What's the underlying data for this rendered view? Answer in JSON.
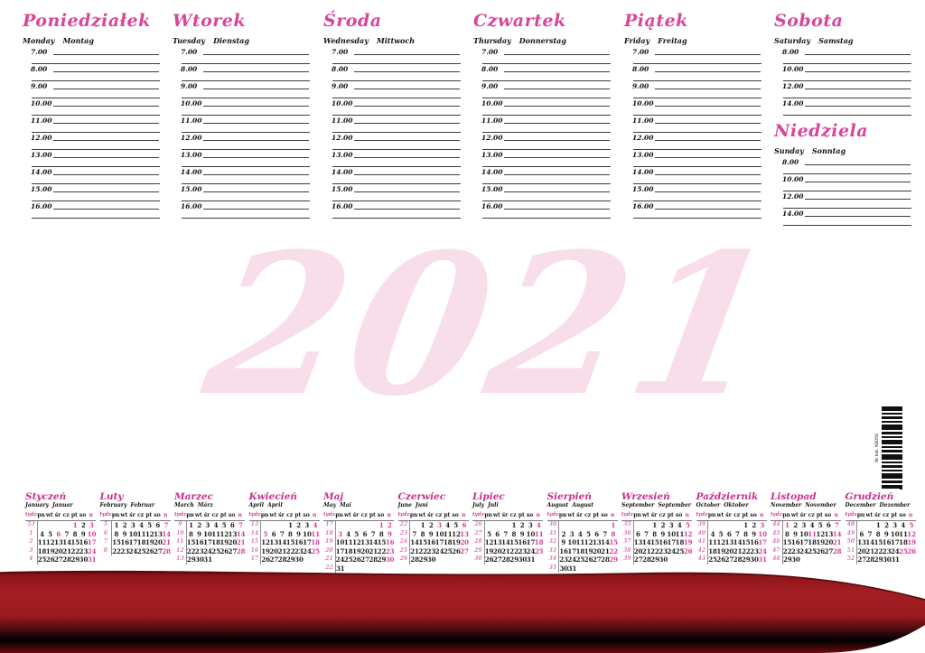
{
  "year_watermark": "2021",
  "colors": {
    "title_pink": "#d8469c",
    "month_magenta": "#c6308d",
    "holiday_pink": "#d63d96",
    "band_red": "#9a1a20",
    "watermark_pink": "#f7d9e8"
  },
  "pink_flag_suffix": "*",
  "planner": {
    "days": [
      {
        "title": "Poniedziałek",
        "sub_en": "Monday",
        "sub_de": "Montag",
        "times": [
          "7.00",
          "8.00",
          "9.00",
          "10.00",
          "11.00",
          "12.00",
          "13.00",
          "14.00",
          "15.00",
          "16.00"
        ]
      },
      {
        "title": "Wtorek",
        "sub_en": "Tuesday",
        "sub_de": "Dienstag",
        "times": [
          "7.00",
          "8.00",
          "9.00",
          "10.00",
          "11.00",
          "12.00",
          "13.00",
          "14.00",
          "15.00",
          "16.00"
        ]
      },
      {
        "title": "Środa",
        "sub_en": "Wednesday",
        "sub_de": "Mittwoch",
        "times": [
          "7.00",
          "8.00",
          "9.00",
          "10.00",
          "11.00",
          "12.00",
          "13.00",
          "14.00",
          "15.00",
          "16.00"
        ]
      },
      {
        "title": "Czwartek",
        "sub_en": "Thursday",
        "sub_de": "Donnerstag",
        "times": [
          "7.00",
          "8.00",
          "9.00",
          "10.00",
          "11.00",
          "12.00",
          "13.00",
          "14.00",
          "15.00",
          "16.00"
        ]
      },
      {
        "title": "Piątek",
        "sub_en": "Friday",
        "sub_de": "Freitag",
        "times": [
          "7.00",
          "8.00",
          "9.00",
          "10.00",
          "11.00",
          "12.00",
          "13.00",
          "14.00",
          "15.00",
          "16.00"
        ]
      },
      {
        "title": "Sobota",
        "sub_en": "Saturday",
        "sub_de": "Samstag",
        "times": [
          "8.00",
          "10.00",
          "12.00",
          "14.00"
        ]
      },
      {
        "title": "Niedziela",
        "sub_en": "Sunday",
        "sub_de": "Sonntag",
        "times": [
          "8.00",
          "10.00",
          "12.00",
          "14.00"
        ]
      }
    ]
  },
  "barcode": {
    "label": "Nr kat. KB056"
  },
  "mini_calendars": {
    "day_headers": [
      "tydz.*",
      "pn",
      "wt",
      "śr",
      "cz",
      "pt",
      "so",
      "n*"
    ],
    "months": [
      {
        "title": "Styczeń",
        "sub_en": "January",
        "sub_de": "Januar",
        "weeks": [
          {
            "n": "53",
            "d": [
              "",
              "",
              "",
              "",
              "1*",
              "2",
              "3*"
            ]
          },
          {
            "n": "1",
            "d": [
              "4",
              "5",
              "6*",
              "7",
              "8",
              "9",
              "10*"
            ]
          },
          {
            "n": "2",
            "d": [
              "11",
              "12",
              "13",
              "14",
              "15",
              "16",
              "17*"
            ]
          },
          {
            "n": "3",
            "d": [
              "18",
              "19",
              "20",
              "21",
              "22",
              "23",
              "24*"
            ]
          },
          {
            "n": "4",
            "d": [
              "25",
              "26",
              "27",
              "28",
              "29",
              "30",
              "31*"
            ]
          }
        ]
      },
      {
        "title": "Luty",
        "sub_en": "February",
        "sub_de": "Februar",
        "weeks": [
          {
            "n": "5",
            "d": [
              "1",
              "2",
              "3",
              "4",
              "5",
              "6",
              "7*"
            ]
          },
          {
            "n": "6",
            "d": [
              "8",
              "9",
              "10",
              "11",
              "12",
              "13",
              "14*"
            ]
          },
          {
            "n": "7",
            "d": [
              "15",
              "16",
              "17",
              "18",
              "19",
              "20",
              "21*"
            ]
          },
          {
            "n": "8",
            "d": [
              "22",
              "23",
              "24",
              "25",
              "26",
              "27",
              "28*"
            ]
          }
        ]
      },
      {
        "title": "Marzec",
        "sub_en": "March",
        "sub_de": "März",
        "weeks": [
          {
            "n": "9",
            "d": [
              "1",
              "2",
              "3",
              "4",
              "5",
              "6",
              "7*"
            ]
          },
          {
            "n": "10",
            "d": [
              "8",
              "9",
              "10",
              "11",
              "12",
              "13",
              "14*"
            ]
          },
          {
            "n": "11",
            "d": [
              "15",
              "16",
              "17",
              "18",
              "19",
              "20",
              "21*"
            ]
          },
          {
            "n": "12",
            "d": [
              "22",
              "23",
              "24",
              "25",
              "26",
              "27",
              "28*"
            ]
          },
          {
            "n": "13",
            "d": [
              "29",
              "30",
              "31",
              "",
              "",
              "",
              ""
            ]
          }
        ]
      },
      {
        "title": "Kwiecień",
        "sub_en": "April",
        "sub_de": "April",
        "weeks": [
          {
            "n": "13",
            "d": [
              "",
              "",
              "",
              "1",
              "2",
              "3",
              "4*"
            ]
          },
          {
            "n": "14",
            "d": [
              "5*",
              "6",
              "7",
              "8",
              "9",
              "10",
              "11*"
            ]
          },
          {
            "n": "15",
            "d": [
              "12",
              "13",
              "14",
              "15",
              "16",
              "17",
              "18*"
            ]
          },
          {
            "n": "16",
            "d": [
              "19",
              "20",
              "21",
              "22",
              "23",
              "24",
              "25*"
            ]
          },
          {
            "n": "17",
            "d": [
              "26",
              "27",
              "28",
              "29",
              "30",
              "",
              ""
            ]
          }
        ]
      },
      {
        "title": "Maj",
        "sub_en": "May",
        "sub_de": "Mai",
        "weeks": [
          {
            "n": "17",
            "d": [
              "",
              "",
              "",
              "",
              "",
              "1*",
              "2*"
            ]
          },
          {
            "n": "18",
            "d": [
              "3*",
              "4",
              "5",
              "6",
              "7",
              "8",
              "9*"
            ]
          },
          {
            "n": "19",
            "d": [
              "10",
              "11",
              "12",
              "13",
              "14",
              "15",
              "16*"
            ]
          },
          {
            "n": "20",
            "d": [
              "17",
              "18",
              "19",
              "20",
              "21",
              "22",
              "23*"
            ]
          },
          {
            "n": "21",
            "d": [
              "24",
              "25",
              "26",
              "27",
              "28",
              "29",
              "30*"
            ]
          },
          {
            "n": "22",
            "d": [
              "31",
              "",
              "",
              "",
              "",
              "",
              ""
            ]
          }
        ]
      },
      {
        "title": "Czerwiec",
        "sub_en": "June",
        "sub_de": "Juni",
        "weeks": [
          {
            "n": "22",
            "d": [
              "",
              "1",
              "2",
              "3*",
              "4",
              "5",
              "6*"
            ]
          },
          {
            "n": "23",
            "d": [
              "7",
              "8",
              "9",
              "10",
              "11",
              "12",
              "13*"
            ]
          },
          {
            "n": "24",
            "d": [
              "14",
              "15",
              "16",
              "17",
              "18",
              "19",
              "20*"
            ]
          },
          {
            "n": "25",
            "d": [
              "21",
              "22",
              "23",
              "24",
              "25",
              "26",
              "27*"
            ]
          },
          {
            "n": "26",
            "d": [
              "28",
              "29",
              "30",
              "",
              "",
              "",
              ""
            ]
          }
        ]
      },
      {
        "title": "Lipiec",
        "sub_en": "July",
        "sub_de": "Juli",
        "weeks": [
          {
            "n": "26",
            "d": [
              "",
              "",
              "",
              "1",
              "2",
              "3",
              "4*"
            ]
          },
          {
            "n": "27",
            "d": [
              "5",
              "6",
              "7",
              "8",
              "9",
              "10",
              "11*"
            ]
          },
          {
            "n": "28",
            "d": [
              "12",
              "13",
              "14",
              "15",
              "16",
              "17",
              "18*"
            ]
          },
          {
            "n": "29",
            "d": [
              "19",
              "20",
              "21",
              "22",
              "23",
              "24",
              "25*"
            ]
          },
          {
            "n": "30",
            "d": [
              "26",
              "27",
              "28",
              "29",
              "30",
              "31",
              ""
            ]
          }
        ]
      },
      {
        "title": "Sierpień",
        "sub_en": "August",
        "sub_de": "August",
        "weeks": [
          {
            "n": "30",
            "d": [
              "",
              "",
              "",
              "",
              "",
              "",
              "1*"
            ]
          },
          {
            "n": "31",
            "d": [
              "2",
              "3",
              "4",
              "5",
              "6",
              "7",
              "8*"
            ]
          },
          {
            "n": "32",
            "d": [
              "9",
              "10",
              "11",
              "12",
              "13",
              "14",
              "15*"
            ]
          },
          {
            "n": "33",
            "d": [
              "16",
              "17",
              "18",
              "19",
              "20",
              "21",
              "22*"
            ]
          },
          {
            "n": "34",
            "d": [
              "23",
              "24",
              "25",
              "26",
              "27",
              "28",
              "29*"
            ]
          },
          {
            "n": "35",
            "d": [
              "30",
              "31",
              "",
              "",
              "",
              "",
              ""
            ]
          }
        ]
      },
      {
        "title": "Wrzesień",
        "sub_en": "September",
        "sub_de": "September",
        "weeks": [
          {
            "n": "35",
            "d": [
              "",
              "",
              "1",
              "2",
              "3",
              "4",
              "5*"
            ]
          },
          {
            "n": "36",
            "d": [
              "6",
              "7",
              "8",
              "9",
              "10",
              "11",
              "12*"
            ]
          },
          {
            "n": "37",
            "d": [
              "13",
              "14",
              "15",
              "16",
              "17",
              "18",
              "19*"
            ]
          },
          {
            "n": "38",
            "d": [
              "20",
              "21",
              "22",
              "23",
              "24",
              "25",
              "26*"
            ]
          },
          {
            "n": "39",
            "d": [
              "27",
              "28",
              "29",
              "30",
              "",
              "",
              ""
            ]
          }
        ]
      },
      {
        "title": "Październik",
        "sub_en": "October",
        "sub_de": "Oktober",
        "weeks": [
          {
            "n": "39",
            "d": [
              "",
              "",
              "",
              "",
              "1",
              "2",
              "3*"
            ]
          },
          {
            "n": "40",
            "d": [
              "4",
              "5",
              "6",
              "7",
              "8",
              "9",
              "10*"
            ]
          },
          {
            "n": "41",
            "d": [
              "11",
              "12",
              "13",
              "14",
              "15",
              "16",
              "17*"
            ]
          },
          {
            "n": "42",
            "d": [
              "18",
              "19",
              "20",
              "21",
              "22",
              "23",
              "24*"
            ]
          },
          {
            "n": "43",
            "d": [
              "25",
              "26",
              "27",
              "28",
              "29",
              "30",
              "31*"
            ]
          }
        ]
      },
      {
        "title": "Listopad",
        "sub_en": "November",
        "sub_de": "November",
        "weeks": [
          {
            "n": "44",
            "d": [
              "1*",
              "2",
              "3",
              "4",
              "5",
              "6",
              "7*"
            ]
          },
          {
            "n": "45",
            "d": [
              "8",
              "9",
              "10",
              "11*",
              "12",
              "13",
              "14*"
            ]
          },
          {
            "n": "46",
            "d": [
              "15",
              "16",
              "17",
              "18",
              "19",
              "20",
              "21*"
            ]
          },
          {
            "n": "47",
            "d": [
              "22",
              "23",
              "24",
              "25",
              "26",
              "27",
              "28*"
            ]
          },
          {
            "n": "48",
            "d": [
              "29",
              "30",
              "",
              "",
              "",
              "",
              ""
            ]
          }
        ]
      },
      {
        "title": "Grudzień",
        "sub_en": "December",
        "sub_de": "Dezember",
        "weeks": [
          {
            "n": "48",
            "d": [
              "",
              "",
              "1",
              "2",
              "3",
              "4",
              "5*"
            ]
          },
          {
            "n": "49",
            "d": [
              "6",
              "7",
              "8",
              "9",
              "10",
              "11",
              "12*"
            ]
          },
          {
            "n": "50",
            "d": [
              "13",
              "14",
              "15",
              "16",
              "17",
              "18",
              "19*"
            ]
          },
          {
            "n": "51",
            "d": [
              "20",
              "21",
              "22",
              "23",
              "24",
              "25*",
              "26*"
            ]
          },
          {
            "n": "52",
            "d": [
              "27",
              "28",
              "29",
              "30",
              "31",
              "",
              ""
            ]
          }
        ]
      }
    ]
  }
}
